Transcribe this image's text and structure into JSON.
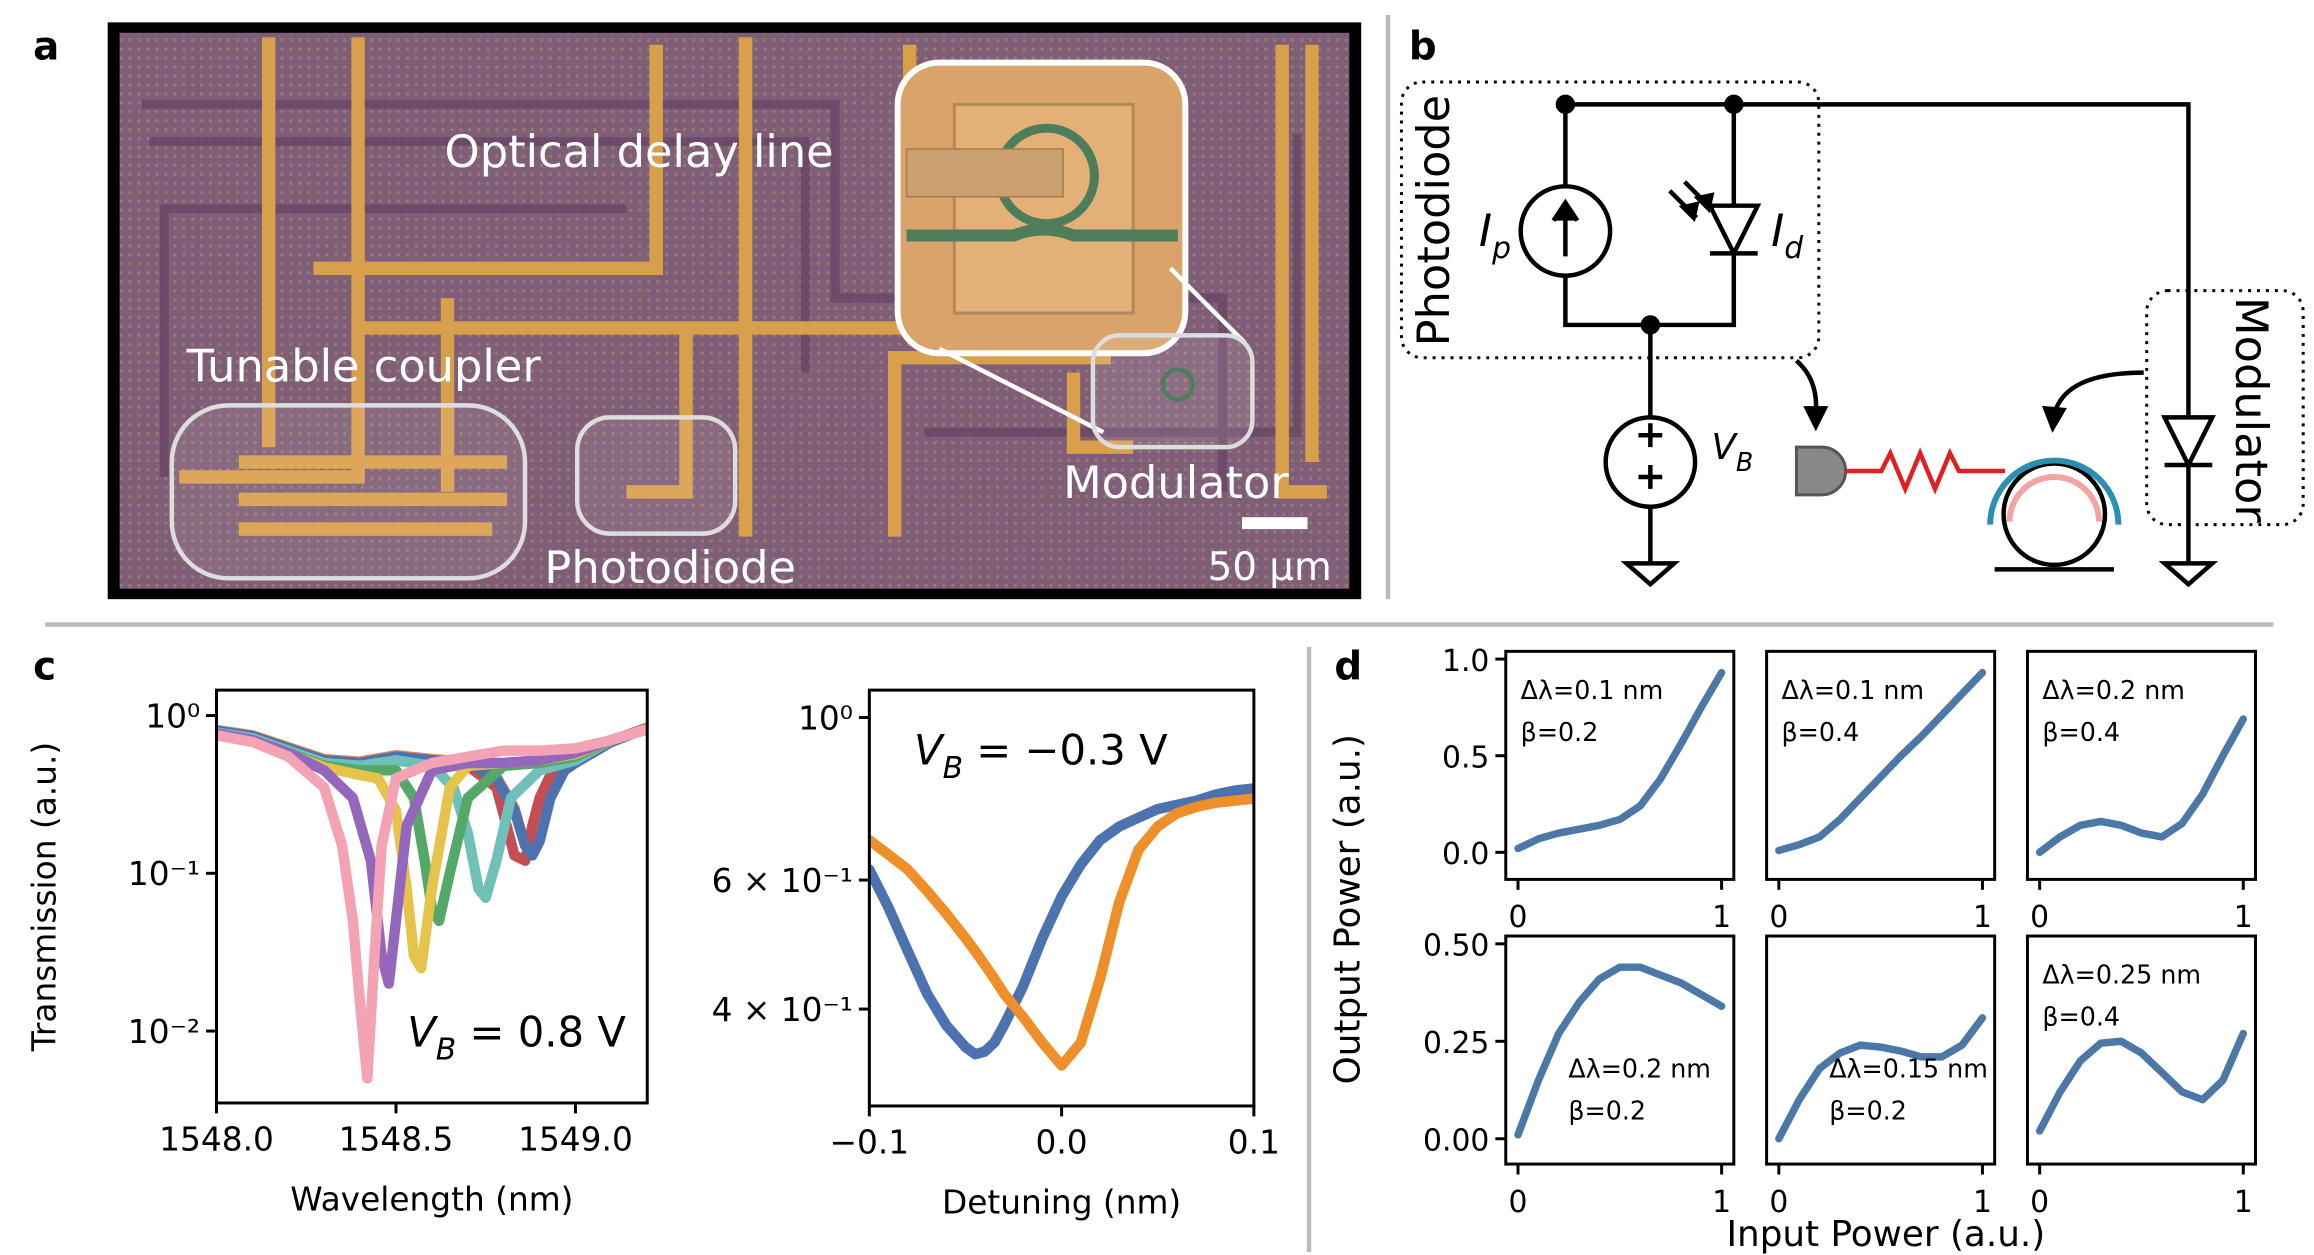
{
  "panel_labels": [
    "a",
    "b",
    "c",
    "d"
  ],
  "micrograph": {
    "labels": [
      "Optical delay line",
      "Tunable coupler",
      "Photodiode",
      "Modulator"
    ],
    "scale_bar": "50 µm"
  },
  "circuit": {
    "photodiode_label": "Photodiode",
    "modulator_label": "Modulator",
    "current_source": {
      "symbol": "I",
      "subscript": "p"
    },
    "diode": {
      "symbol": "I",
      "subscript": "d"
    },
    "bias": {
      "symbol": "V",
      "subscript": "B"
    }
  },
  "panel_d_axes": {
    "ylabel": "Output Power (a.u.)",
    "xlabel": "Input Power (a.u.)"
  },
  "chart_data": [
    {
      "type": "line",
      "yscale": "log",
      "ylabel": "Transmission (a.u.)",
      "xlabel": "Wavelength (nm)",
      "xlim": [
        1548.0,
        1549.2
      ],
      "xticks": [
        {
          "value": 1548.0,
          "label": "1548.0"
        },
        1548.5,
        {
          "value": 1549.0,
          "label": "1549.0"
        }
      ],
      "ylim": [
        0.0035,
        1.45
      ],
      "yticks": [
        {
          "value": 1,
          "label": "10⁰"
        },
        {
          "value": 0.1,
          "label": "10⁻¹"
        },
        {
          "value": 0.01,
          "label": "10⁻²"
        }
      ],
      "annotation": {
        "symbol": "V",
        "subscript": "B",
        "text": " = 0.8 V"
      },
      "annotation_loc": "lower right",
      "series": [
        {
          "color": "#dd8452",
          "x": [
            1548.0,
            1548.1,
            1548.2,
            1548.3,
            1548.4,
            1548.5,
            1548.6,
            1548.7,
            1548.78,
            1548.83,
            1548.86,
            1548.88,
            1548.9,
            1548.93,
            1548.97,
            1549.0,
            1549.1,
            1549.2
          ],
          "values": [
            0.81,
            0.75,
            0.63,
            0.53,
            0.51,
            0.56,
            0.53,
            0.51,
            0.41,
            0.26,
            0.15,
            0.14,
            0.17,
            0.31,
            0.46,
            0.51,
            0.69,
            0.84
          ]
        },
        {
          "color": "#c44e52",
          "x": [
            1548.0,
            1548.1,
            1548.2,
            1548.3,
            1548.4,
            1548.5,
            1548.6,
            1548.7,
            1548.78,
            1548.83,
            1548.86,
            1548.88,
            1548.9,
            1548.93,
            1548.97,
            1549.0,
            1549.1,
            1549.2
          ],
          "values": [
            0.79,
            0.73,
            0.6,
            0.5,
            0.48,
            0.53,
            0.5,
            0.48,
            0.35,
            0.13,
            0.12,
            0.2,
            0.3,
            0.42,
            0.5,
            0.55,
            0.7,
            0.83
          ]
        },
        {
          "color": "#4c72b0",
          "x": [
            1548.0,
            1548.1,
            1548.2,
            1548.3,
            1548.4,
            1548.5,
            1548.6,
            1548.7,
            1548.78,
            1548.83,
            1548.86,
            1548.88,
            1548.9,
            1548.93,
            1548.97,
            1549.0,
            1549.1,
            1549.2
          ],
          "values": [
            0.8,
            0.74,
            0.62,
            0.52,
            0.5,
            0.55,
            0.52,
            0.5,
            0.4,
            0.25,
            0.15,
            0.13,
            0.16,
            0.3,
            0.45,
            0.5,
            0.68,
            0.83
          ]
        },
        {
          "color": "#6fc0b8",
          "x": [
            1548.0,
            1548.1,
            1548.2,
            1548.3,
            1548.4,
            1548.5,
            1548.6,
            1548.66,
            1548.7,
            1548.73,
            1548.75,
            1548.78,
            1548.82,
            1548.9,
            1549.0,
            1549.1,
            1549.2
          ],
          "values": [
            0.78,
            0.72,
            0.6,
            0.5,
            0.48,
            0.52,
            0.48,
            0.35,
            0.18,
            0.08,
            0.07,
            0.12,
            0.3,
            0.45,
            0.52,
            0.7,
            0.82
          ]
        },
        {
          "color": "#55a868",
          "x": [
            1548.0,
            1548.1,
            1548.2,
            1548.3,
            1548.4,
            1548.5,
            1548.55,
            1548.58,
            1548.6,
            1548.62,
            1548.65,
            1548.7,
            1548.8,
            1548.9,
            1549.0,
            1549.1,
            1549.2
          ],
          "values": [
            0.77,
            0.7,
            0.58,
            0.48,
            0.45,
            0.45,
            0.3,
            0.12,
            0.06,
            0.05,
            0.1,
            0.3,
            0.48,
            0.5,
            0.55,
            0.7,
            0.82
          ]
        },
        {
          "color": "#e6c44c",
          "x": [
            1548.0,
            1548.1,
            1548.2,
            1548.3,
            1548.4,
            1548.45,
            1548.5,
            1548.53,
            1548.55,
            1548.57,
            1548.6,
            1548.65,
            1548.7,
            1548.8,
            1548.9,
            1549.0,
            1549.1,
            1549.2
          ],
          "values": [
            0.76,
            0.7,
            0.57,
            0.47,
            0.42,
            0.4,
            0.25,
            0.08,
            0.03,
            0.025,
            0.08,
            0.35,
            0.48,
            0.5,
            0.52,
            0.57,
            0.7,
            0.82
          ]
        },
        {
          "color": "#9467bd",
          "x": [
            1548.0,
            1548.1,
            1548.2,
            1548.3,
            1548.38,
            1548.43,
            1548.46,
            1548.48,
            1548.5,
            1548.53,
            1548.6,
            1548.7,
            1548.8,
            1548.9,
            1549.0,
            1549.1,
            1549.2
          ],
          "values": [
            0.77,
            0.7,
            0.58,
            0.45,
            0.3,
            0.12,
            0.03,
            0.02,
            0.05,
            0.2,
            0.45,
            0.5,
            0.5,
            0.52,
            0.58,
            0.7,
            0.82
          ]
        },
        {
          "color": "#f4a3b4",
          "x": [
            1548.0,
            1548.1,
            1548.2,
            1548.3,
            1548.35,
            1548.38,
            1548.4,
            1548.42,
            1548.44,
            1548.46,
            1548.5,
            1548.6,
            1548.7,
            1548.8,
            1548.9,
            1549.0,
            1549.1,
            1549.2
          ],
          "values": [
            0.75,
            0.68,
            0.55,
            0.35,
            0.15,
            0.05,
            0.015,
            0.005,
            0.03,
            0.15,
            0.4,
            0.5,
            0.55,
            0.6,
            0.6,
            0.62,
            0.7,
            0.82
          ]
        }
      ]
    },
    {
      "type": "line",
      "yscale": "log",
      "xlabel": "Detuning (nm)",
      "xlim": [
        -0.1,
        0.1
      ],
      "xticks": [
        {
          "value": -0.1,
          "label": "−0.1"
        },
        {
          "value": 0.0,
          "label": "0.0"
        },
        0.1
      ],
      "ylim": [
        0.295,
        1.09
      ],
      "yticks": [
        {
          "value": 1,
          "label": "10⁰"
        },
        {
          "value": 0.6,
          "label": "6 × 10⁻¹"
        },
        {
          "value": 0.4,
          "label": "4 × 10⁻¹"
        }
      ],
      "annotation": {
        "symbol": "V",
        "subscript": "B",
        "text": " = −0.3 V"
      },
      "annotation_loc": "upper left",
      "x": [
        -0.1,
        -0.09,
        -0.08,
        -0.07,
        -0.06,
        -0.05,
        -0.045,
        -0.04,
        -0.035,
        -0.03,
        -0.02,
        -0.01,
        0.0,
        0.01,
        0.02,
        0.03,
        0.04,
        0.05,
        0.06,
        0.07,
        0.08,
        0.09,
        0.1
      ],
      "series": [
        {
          "color": "#4c72b0",
          "values": [
            0.62,
            0.55,
            0.48,
            0.42,
            0.38,
            0.355,
            0.347,
            0.35,
            0.36,
            0.38,
            0.43,
            0.5,
            0.57,
            0.63,
            0.68,
            0.71,
            0.73,
            0.75,
            0.76,
            0.77,
            0.785,
            0.795,
            0.8
          ]
        },
        {
          "color": "#ee8f2a",
          "values": [
            0.68,
            0.65,
            0.62,
            0.58,
            0.54,
            0.5,
            0.48,
            0.46,
            0.44,
            0.42,
            0.39,
            0.36,
            0.335,
            0.36,
            0.44,
            0.56,
            0.66,
            0.71,
            0.74,
            0.755,
            0.765,
            0.77,
            0.775
          ]
        }
      ]
    },
    {
      "type": "line",
      "xlim": [
        -0.06,
        1.06
      ],
      "xticks": [
        0,
        1
      ],
      "ylim": [
        -0.14,
        1.04
      ],
      "yticks": [
        {
          "value": 0.0,
          "label": "0.0"
        },
        0.5,
        {
          "value": 1.0,
          "label": "1.0"
        }
      ],
      "annotations": [
        "Δλ=0.1 nm",
        "β=0.2"
      ],
      "annotation_loc": "upper left",
      "x": [
        0,
        0.1,
        0.2,
        0.3,
        0.4,
        0.5,
        0.6,
        0.7,
        0.8,
        0.9,
        1
      ],
      "series": [
        {
          "color": "#4c78a8",
          "values": [
            0.02,
            0.07,
            0.1,
            0.12,
            0.14,
            0.17,
            0.24,
            0.38,
            0.56,
            0.75,
            0.93
          ]
        }
      ]
    },
    {
      "type": "line",
      "xlim": [
        -0.06,
        1.06
      ],
      "xticks": [
        0,
        1
      ],
      "ylim": [
        -0.14,
        1.04
      ],
      "annotations": [
        "Δλ=0.1 nm",
        "β=0.4"
      ],
      "annotation_loc": "upper left",
      "x": [
        0,
        0.1,
        0.2,
        0.3,
        0.4,
        0.5,
        0.6,
        0.7,
        0.8,
        0.9,
        1
      ],
      "series": [
        {
          "color": "#4c78a8",
          "values": [
            0.01,
            0.04,
            0.08,
            0.17,
            0.28,
            0.39,
            0.5,
            0.6,
            0.71,
            0.82,
            0.93
          ]
        }
      ]
    },
    {
      "type": "line",
      "xlim": [
        -0.06,
        1.06
      ],
      "xticks": [
        0,
        1
      ],
      "ylim": [
        -0.14,
        1.04
      ],
      "annotations": [
        "Δλ=0.2 nm",
        "β=0.4"
      ],
      "annotation_loc": "upper left",
      "x": [
        0,
        0.1,
        0.2,
        0.3,
        0.4,
        0.5,
        0.6,
        0.7,
        0.8,
        0.9,
        1
      ],
      "series": [
        {
          "color": "#4c78a8",
          "values": [
            0.0,
            0.08,
            0.14,
            0.16,
            0.14,
            0.1,
            0.08,
            0.15,
            0.3,
            0.5,
            0.69
          ]
        }
      ]
    },
    {
      "type": "line",
      "xlim": [
        -0.06,
        1.06
      ],
      "xticks": [
        0,
        1
      ],
      "ylim": [
        -0.065,
        0.52
      ],
      "yticks": [
        {
          "value": 0.0,
          "label": "0.00"
        },
        0.25,
        {
          "value": 0.5,
          "label": "0.50"
        }
      ],
      "annotations": [
        "Δλ=0.2 nm",
        "β=0.2"
      ],
      "annotation_loc": "lower right",
      "x": [
        0,
        0.1,
        0.2,
        0.3,
        0.4,
        0.5,
        0.6,
        0.7,
        0.8,
        0.9,
        1
      ],
      "series": [
        {
          "color": "#4c78a8",
          "values": [
            0.01,
            0.15,
            0.27,
            0.35,
            0.41,
            0.44,
            0.44,
            0.42,
            0.4,
            0.37,
            0.34
          ]
        }
      ]
    },
    {
      "type": "line",
      "xlim": [
        -0.06,
        1.06
      ],
      "xticks": [
        0,
        1
      ],
      "ylim": [
        -0.065,
        0.52
      ],
      "annotations": [
        "Δλ=0.15 nm",
        "β=0.2"
      ],
      "annotation_loc": "lower right",
      "x": [
        0,
        0.1,
        0.2,
        0.3,
        0.4,
        0.5,
        0.6,
        0.7,
        0.8,
        0.9,
        1
      ],
      "series": [
        {
          "color": "#4c78a8",
          "values": [
            0.0,
            0.1,
            0.18,
            0.22,
            0.24,
            0.235,
            0.225,
            0.21,
            0.21,
            0.24,
            0.31
          ]
        }
      ]
    },
    {
      "type": "line",
      "xlim": [
        -0.06,
        1.06
      ],
      "xticks": [
        0,
        1
      ],
      "ylim": [
        -0.065,
        0.52
      ],
      "annotations": [
        "Δλ=0.25 nm",
        "β=0.4"
      ],
      "annotation_loc": "upper left",
      "x": [
        0,
        0.1,
        0.2,
        0.3,
        0.4,
        0.5,
        0.6,
        0.7,
        0.8,
        0.9,
        1
      ],
      "series": [
        {
          "color": "#4c78a8",
          "values": [
            0.02,
            0.12,
            0.2,
            0.245,
            0.25,
            0.22,
            0.17,
            0.12,
            0.1,
            0.15,
            0.27
          ]
        }
      ]
    }
  ]
}
